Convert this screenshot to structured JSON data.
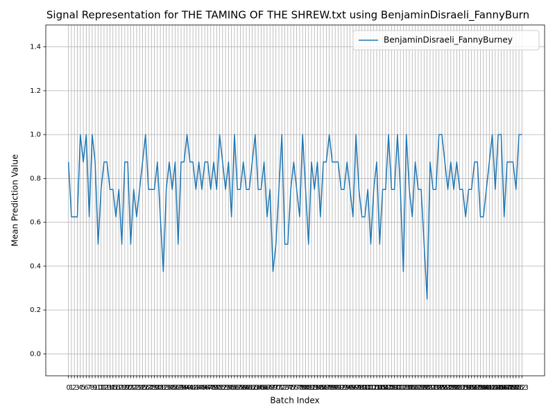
{
  "chart_data": {
    "type": "line",
    "title": "Signal Representation for THE TAMING OF THE SHREW.txt using BenjaminDisraeli_FannyBurn",
    "x_label": "Batch Index",
    "y_label": "Mean Prediction Value",
    "x": [
      0,
      1,
      2,
      3,
      4,
      5,
      6,
      7,
      8,
      9,
      10,
      11,
      12,
      13,
      14,
      15,
      16,
      17,
      18,
      19,
      20,
      21,
      22,
      23,
      24,
      25,
      26,
      27,
      28,
      29,
      30,
      31,
      32,
      33,
      34,
      35,
      36,
      37,
      38,
      39,
      40,
      41,
      42,
      43,
      44,
      45,
      46,
      47,
      48,
      49,
      50,
      51,
      52,
      53,
      54,
      55,
      56,
      57,
      58,
      59,
      60,
      61,
      62,
      63,
      64,
      65,
      66,
      67,
      68,
      69,
      70,
      71,
      72,
      73,
      74,
      75,
      76,
      77,
      78,
      79,
      80,
      81,
      82,
      83,
      84,
      85,
      86,
      87,
      88,
      89,
      90,
      91,
      92,
      93,
      94,
      95,
      96,
      97,
      98,
      99,
      100,
      101,
      102,
      103,
      104,
      105,
      106,
      107,
      108,
      109,
      110,
      111,
      112,
      113,
      114,
      115,
      116,
      117,
      118,
      119,
      120,
      121,
      122,
      123,
      124,
      125,
      126,
      127,
      128,
      129,
      130,
      131,
      132,
      133,
      134,
      135,
      136,
      137,
      138,
      139,
      140,
      141,
      142,
      143,
      144,
      145,
      146,
      147,
      148,
      149,
      150,
      151,
      152,
      153
    ],
    "series": [
      {
        "name": "BenjaminDisraeli_FannyBurney",
        "color": "#1f77b4",
        "values": [
          0.875,
          0.625,
          0.625,
          0.625,
          1.0,
          0.875,
          1.0,
          0.625,
          1.0,
          0.875,
          0.5,
          0.75,
          0.875,
          0.875,
          0.75,
          0.75,
          0.625,
          0.75,
          0.5,
          0.875,
          0.875,
          0.5,
          0.75,
          0.625,
          0.75,
          0.875,
          1.0,
          0.75,
          0.75,
          0.75,
          0.875,
          0.625,
          0.375,
          0.75,
          0.875,
          0.75,
          0.875,
          0.5,
          0.875,
          0.875,
          1.0,
          0.875,
          0.875,
          0.75,
          0.875,
          0.75,
          0.875,
          0.875,
          0.75,
          0.875,
          0.75,
          1.0,
          0.875,
          0.75,
          0.875,
          0.625,
          1.0,
          0.75,
          0.75,
          0.875,
          0.75,
          0.75,
          0.875,
          1.0,
          0.75,
          0.75,
          0.875,
          0.625,
          0.75,
          0.375,
          0.5,
          0.75,
          1.0,
          0.5,
          0.5,
          0.75,
          0.875,
          0.75,
          0.625,
          1.0,
          0.75,
          0.5,
          0.875,
          0.75,
          0.875,
          0.625,
          0.875,
          0.875,
          1.0,
          0.875,
          0.875,
          0.875,
          0.75,
          0.75,
          0.875,
          0.75,
          0.625,
          1.0,
          0.75,
          0.625,
          0.625,
          0.75,
          0.5,
          0.75,
          0.875,
          0.5,
          0.75,
          0.75,
          1.0,
          0.75,
          0.75,
          1.0,
          0.75,
          0.375,
          1.0,
          0.75,
          0.625,
          0.875,
          0.75,
          0.75,
          0.5,
          0.25,
          0.875,
          0.75,
          0.75,
          1.0,
          1.0,
          0.875,
          0.75,
          0.875,
          0.75,
          0.875,
          0.75,
          0.75,
          0.625,
          0.75,
          0.75,
          0.875,
          0.875,
          0.625,
          0.625,
          0.75,
          0.875,
          1.0,
          0.75,
          1.0,
          1.0,
          0.625,
          0.875,
          0.875,
          0.875,
          0.75,
          1.0,
          1.0
        ]
      }
    ],
    "xlim": [
      -7.65,
      160.65
    ],
    "xticks": [
      0,
      1,
      2,
      3,
      4,
      5,
      6,
      7,
      8,
      9,
      10,
      11,
      12,
      13,
      14,
      15,
      16,
      17,
      18,
      19,
      20,
      21,
      22,
      23,
      24,
      25,
      26,
      27,
      28,
      29,
      30,
      31,
      32,
      33,
      34,
      35,
      36,
      37,
      38,
      39,
      40,
      41,
      42,
      43,
      44,
      45,
      46,
      47,
      48,
      49,
      50,
      51,
      52,
      53,
      54,
      55,
      56,
      57,
      58,
      59,
      60,
      61,
      62,
      63,
      64,
      65,
      66,
      67,
      68,
      69,
      70,
      71,
      72,
      73,
      74,
      75,
      76,
      77,
      78,
      79,
      80,
      81,
      82,
      83,
      84,
      85,
      86,
      87,
      88,
      89,
      90,
      91,
      92,
      93,
      94,
      95,
      96,
      97,
      98,
      99,
      100,
      101,
      102,
      103,
      104,
      105,
      106,
      107,
      108,
      109,
      110,
      111,
      112,
      113,
      114,
      115,
      116,
      117,
      118,
      119,
      120,
      121,
      122,
      123,
      124,
      125,
      126,
      127,
      128,
      129,
      130,
      131,
      132,
      133,
      134,
      135,
      136,
      137,
      138,
      139,
      140,
      141,
      142,
      143,
      144,
      145,
      146,
      147,
      148,
      149,
      150,
      151,
      152,
      153
    ],
    "ylim": [
      -0.1,
      1.5
    ],
    "yticks": [
      {
        "value": 0,
        "label": "0.0"
      },
      0.2,
      0.4,
      0.6,
      0.8,
      {
        "value": 1,
        "label": "1.0"
      },
      1.2,
      1.4
    ],
    "grid": true,
    "legend": "upper right"
  }
}
